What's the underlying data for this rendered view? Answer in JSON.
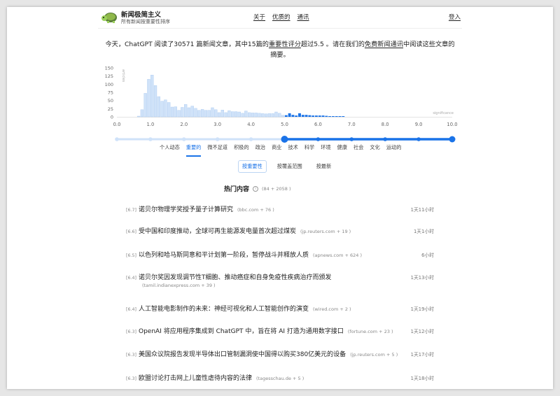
{
  "header": {
    "brand": "新闻极简主义",
    "tagline": "所有新闻按重要性排序",
    "nav": [
      "关于",
      "优质的",
      "通讯"
    ],
    "login": "登入"
  },
  "intro": {
    "p1": "今天，ChatGPT 阅读了30571 篇新闻文章，其中15篇的",
    "link1": "重要性评分",
    "p2": "超过5.5 。请在我们的",
    "link2": "免费新闻通讯",
    "p3": "中阅读这些文章的摘要。"
  },
  "chart_data": {
    "type": "bar",
    "xlabel": "significance",
    "ylabel": "articles",
    "xlim": [
      0,
      10
    ],
    "ylim": [
      0,
      150
    ],
    "yticks": [
      "0",
      "25",
      "50",
      "75",
      "100",
      "125",
      "150"
    ],
    "xticks": [
      "0.0",
      "1.0",
      "2.0",
      "3.0",
      "4.0",
      "5.0",
      "6.0",
      "7.0",
      "8.0",
      "9.0",
      "10.0"
    ],
    "bin_start": [
      0.6,
      0.7,
      0.8,
      0.9,
      1.0,
      1.1,
      1.2,
      1.3,
      1.4,
      1.5,
      1.6,
      1.7,
      1.8,
      1.9,
      2.0,
      2.1,
      2.2,
      2.3,
      2.4,
      2.5,
      2.6,
      2.7,
      2.8,
      2.9,
      3.0,
      3.1,
      3.2,
      3.3,
      3.4,
      3.5,
      3.6,
      3.7,
      3.8,
      3.9,
      4.0,
      4.1,
      4.2,
      4.3,
      4.4,
      4.5,
      4.6,
      4.7,
      4.8,
      4.9,
      5.0,
      5.1,
      5.2,
      5.3,
      5.4,
      5.5,
      5.6,
      5.7,
      5.8,
      5.9,
      6.0,
      6.1,
      6.2,
      6.3,
      6.4,
      6.5,
      6.6,
      6.7
    ],
    "values": [
      2,
      22,
      72,
      115,
      128,
      96,
      62,
      48,
      52,
      44,
      30,
      31,
      20,
      29,
      38,
      28,
      33,
      26,
      20,
      23,
      20,
      20,
      28,
      22,
      13,
      21,
      13,
      19,
      16,
      16,
      15,
      11,
      18,
      13,
      12,
      12,
      11,
      10,
      9,
      10,
      10,
      15,
      11,
      5,
      5,
      11,
      6,
      4,
      11,
      6,
      6,
      5,
      4,
      4,
      4,
      4,
      3,
      2,
      2,
      1,
      1,
      1
    ],
    "threshold": 5.0,
    "colors": {
      "below": "#cfe2f9",
      "above": "#1a73e8"
    },
    "grid": false
  },
  "slider": {
    "value": 5.0,
    "min": 0,
    "max": 10
  },
  "tabs": [
    "个人动态",
    "重要的",
    "微不足道",
    "积极的",
    "政治",
    "商业",
    "技术",
    "科学",
    "环境",
    "健康",
    "社会",
    "文化",
    "运动的"
  ],
  "sorts": [
    "按重要性",
    "按覆盖范围",
    "按最新"
  ],
  "hot": {
    "title": "热门内容",
    "count": "(84 + 2058 )"
  },
  "items": [
    {
      "score": "[6.7]",
      "title": "诺贝尔物理学奖授予量子计算研究",
      "source": "(bbc.com + 76 )",
      "time": "1天11小时"
    },
    {
      "score": "[6.6]",
      "title": "受中国和印度推动，全球可再生能源发电量首次超过煤炭",
      "source": "(jp.reuters.com + 19 )",
      "time": "1天1小时"
    },
    {
      "score": "[6.5]",
      "title": "以色列和哈马斯同意和平计划第一阶段，暂停战斗并释放人质",
      "source": "(apnews.com + 624 )",
      "time": "6小时"
    },
    {
      "score": "[6.4]",
      "title": "诺贝尔奖因发现调节性T细胞、推动癌症和自身免疫性疾病治疗而颁发",
      "source": "(tamil.indianexpress.com + 39 )",
      "time": "1天13小时"
    },
    {
      "score": "[6.4]",
      "title": "人工智能电影制作的未来：神经可视化和人工智能创作的演变",
      "source": "(wired.com + 2 )",
      "time": "1天19小时"
    },
    {
      "score": "[6.3]",
      "title": "OpenAI 将应用程序集成到 ChatGPT 中，旨在将 AI 打造为通用数字接口",
      "source": "(fortune.com + 23 )",
      "time": "1天12小时"
    },
    {
      "score": "[6.3]",
      "title": "美国众议院报告发现半导体出口管制漏洞使中国得以购买380亿美元的设备",
      "source": "(jp.reuters.com + 5 )",
      "time": "1天17小时"
    },
    {
      "score": "[6.3]",
      "title": "欧盟讨论打击网上儿童性虐待内容的法律",
      "source": "(tagesschau.de + 5 )",
      "time": "1天18小时"
    }
  ]
}
